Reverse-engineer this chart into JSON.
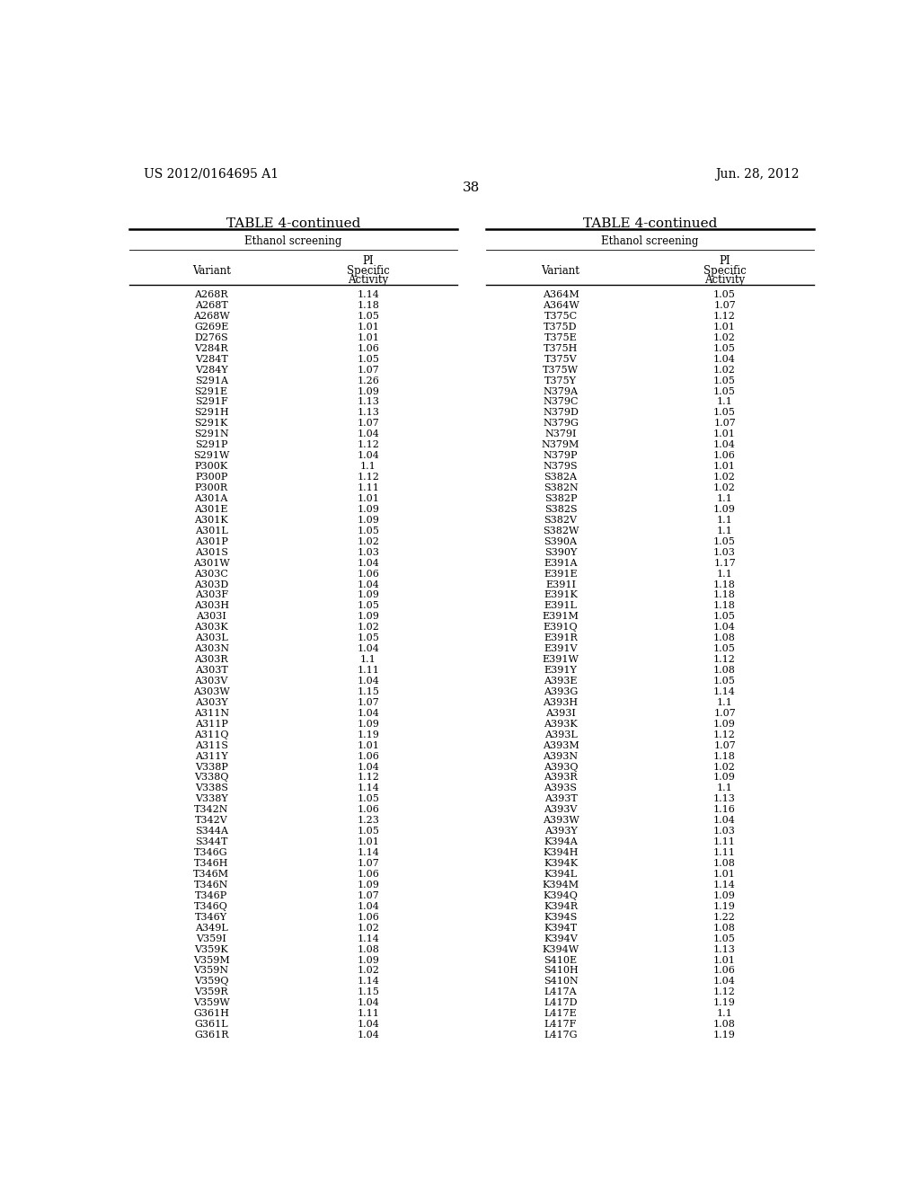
{
  "header_left": "US 2012/0164695 A1",
  "header_right": "Jun. 28, 2012",
  "page_number": "38",
  "table_title": "TABLE 4-continued",
  "section_header": "Ethanol screening",
  "col1_header_line1": "Variant",
  "col2_header_line1": "PI",
  "col2_header_line2": "Specific",
  "col2_header_line3": "Activity",
  "left_data": [
    [
      "A268R",
      "1.14"
    ],
    [
      "A268T",
      "1.18"
    ],
    [
      "A268W",
      "1.05"
    ],
    [
      "G269E",
      "1.01"
    ],
    [
      "D276S",
      "1.01"
    ],
    [
      "V284R",
      "1.06"
    ],
    [
      "V284T",
      "1.05"
    ],
    [
      "V284Y",
      "1.07"
    ],
    [
      "S291A",
      "1.26"
    ],
    [
      "S291E",
      "1.09"
    ],
    [
      "S291F",
      "1.13"
    ],
    [
      "S291H",
      "1.13"
    ],
    [
      "S291K",
      "1.07"
    ],
    [
      "S291N",
      "1.04"
    ],
    [
      "S291P",
      "1.12"
    ],
    [
      "S291W",
      "1.04"
    ],
    [
      "P300K",
      "1.1"
    ],
    [
      "P300P",
      "1.12"
    ],
    [
      "P300R",
      "1.11"
    ],
    [
      "A301A",
      "1.01"
    ],
    [
      "A301E",
      "1.09"
    ],
    [
      "A301K",
      "1.09"
    ],
    [
      "A301L",
      "1.05"
    ],
    [
      "A301P",
      "1.02"
    ],
    [
      "A301S",
      "1.03"
    ],
    [
      "A301W",
      "1.04"
    ],
    [
      "A303C",
      "1.06"
    ],
    [
      "A303D",
      "1.04"
    ],
    [
      "A303F",
      "1.09"
    ],
    [
      "A303H",
      "1.05"
    ],
    [
      "A303I",
      "1.09"
    ],
    [
      "A303K",
      "1.02"
    ],
    [
      "A303L",
      "1.05"
    ],
    [
      "A303N",
      "1.04"
    ],
    [
      "A303R",
      "1.1"
    ],
    [
      "A303T",
      "1.11"
    ],
    [
      "A303V",
      "1.04"
    ],
    [
      "A303W",
      "1.15"
    ],
    [
      "A303Y",
      "1.07"
    ],
    [
      "A311N",
      "1.04"
    ],
    [
      "A311P",
      "1.09"
    ],
    [
      "A311Q",
      "1.19"
    ],
    [
      "A311S",
      "1.01"
    ],
    [
      "A311Y",
      "1.06"
    ],
    [
      "V338P",
      "1.04"
    ],
    [
      "V338Q",
      "1.12"
    ],
    [
      "V338S",
      "1.14"
    ],
    [
      "V338Y",
      "1.05"
    ],
    [
      "T342N",
      "1.06"
    ],
    [
      "T342V",
      "1.23"
    ],
    [
      "S344A",
      "1.05"
    ],
    [
      "S344T",
      "1.01"
    ],
    [
      "T346G",
      "1.14"
    ],
    [
      "T346H",
      "1.07"
    ],
    [
      "T346M",
      "1.06"
    ],
    [
      "T346N",
      "1.09"
    ],
    [
      "T346P",
      "1.07"
    ],
    [
      "T346Q",
      "1.04"
    ],
    [
      "T346Y",
      "1.06"
    ],
    [
      "A349L",
      "1.02"
    ],
    [
      "V359I",
      "1.14"
    ],
    [
      "V359K",
      "1.08"
    ],
    [
      "V359M",
      "1.09"
    ],
    [
      "V359N",
      "1.02"
    ],
    [
      "V359Q",
      "1.14"
    ],
    [
      "V359R",
      "1.15"
    ],
    [
      "V359W",
      "1.04"
    ],
    [
      "G361H",
      "1.11"
    ],
    [
      "G361L",
      "1.04"
    ],
    [
      "G361R",
      "1.04"
    ]
  ],
  "right_data": [
    [
      "A364M",
      "1.05"
    ],
    [
      "A364W",
      "1.07"
    ],
    [
      "T375C",
      "1.12"
    ],
    [
      "T375D",
      "1.01"
    ],
    [
      "T375E",
      "1.02"
    ],
    [
      "T375H",
      "1.05"
    ],
    [
      "T375V",
      "1.04"
    ],
    [
      "T375W",
      "1.02"
    ],
    [
      "T375Y",
      "1.05"
    ],
    [
      "N379A",
      "1.05"
    ],
    [
      "N379C",
      "1.1"
    ],
    [
      "N379D",
      "1.05"
    ],
    [
      "N379G",
      "1.07"
    ],
    [
      "N379I",
      "1.01"
    ],
    [
      "N379M",
      "1.04"
    ],
    [
      "N379P",
      "1.06"
    ],
    [
      "N379S",
      "1.01"
    ],
    [
      "S382A",
      "1.02"
    ],
    [
      "S382N",
      "1.02"
    ],
    [
      "S382P",
      "1.1"
    ],
    [
      "S382S",
      "1.09"
    ],
    [
      "S382V",
      "1.1"
    ],
    [
      "S382W",
      "1.1"
    ],
    [
      "S390A",
      "1.05"
    ],
    [
      "S390Y",
      "1.03"
    ],
    [
      "E391A",
      "1.17"
    ],
    [
      "E391E",
      "1.1"
    ],
    [
      "E391I",
      "1.18"
    ],
    [
      "E391K",
      "1.18"
    ],
    [
      "E391L",
      "1.18"
    ],
    [
      "E391M",
      "1.05"
    ],
    [
      "E391Q",
      "1.04"
    ],
    [
      "E391R",
      "1.08"
    ],
    [
      "E391V",
      "1.05"
    ],
    [
      "E391W",
      "1.12"
    ],
    [
      "E391Y",
      "1.08"
    ],
    [
      "A393E",
      "1.05"
    ],
    [
      "A393G",
      "1.14"
    ],
    [
      "A393H",
      "1.1"
    ],
    [
      "A393I",
      "1.07"
    ],
    [
      "A393K",
      "1.09"
    ],
    [
      "A393L",
      "1.12"
    ],
    [
      "A393M",
      "1.07"
    ],
    [
      "A393N",
      "1.18"
    ],
    [
      "A393Q",
      "1.02"
    ],
    [
      "A393R",
      "1.09"
    ],
    [
      "A393S",
      "1.1"
    ],
    [
      "A393T",
      "1.13"
    ],
    [
      "A393V",
      "1.16"
    ],
    [
      "A393W",
      "1.04"
    ],
    [
      "A393Y",
      "1.03"
    ],
    [
      "K394A",
      "1.11"
    ],
    [
      "K394H",
      "1.11"
    ],
    [
      "K394K",
      "1.08"
    ],
    [
      "K394L",
      "1.01"
    ],
    [
      "K394M",
      "1.14"
    ],
    [
      "K394Q",
      "1.09"
    ],
    [
      "K394R",
      "1.19"
    ],
    [
      "K394S",
      "1.22"
    ],
    [
      "K394T",
      "1.08"
    ],
    [
      "K394V",
      "1.05"
    ],
    [
      "K394W",
      "1.13"
    ],
    [
      "S410E",
      "1.01"
    ],
    [
      "S410H",
      "1.06"
    ],
    [
      "S410N",
      "1.04"
    ],
    [
      "L417A",
      "1.12"
    ],
    [
      "L417D",
      "1.19"
    ],
    [
      "L417E",
      "1.1"
    ],
    [
      "L417F",
      "1.08"
    ],
    [
      "L417G",
      "1.19"
    ]
  ],
  "background_color": "#ffffff",
  "text_color": "#000000",
  "font_size_header": 9,
  "font_size_body": 8.0,
  "font_size_page": 10,
  "font_size_table_title": 11
}
